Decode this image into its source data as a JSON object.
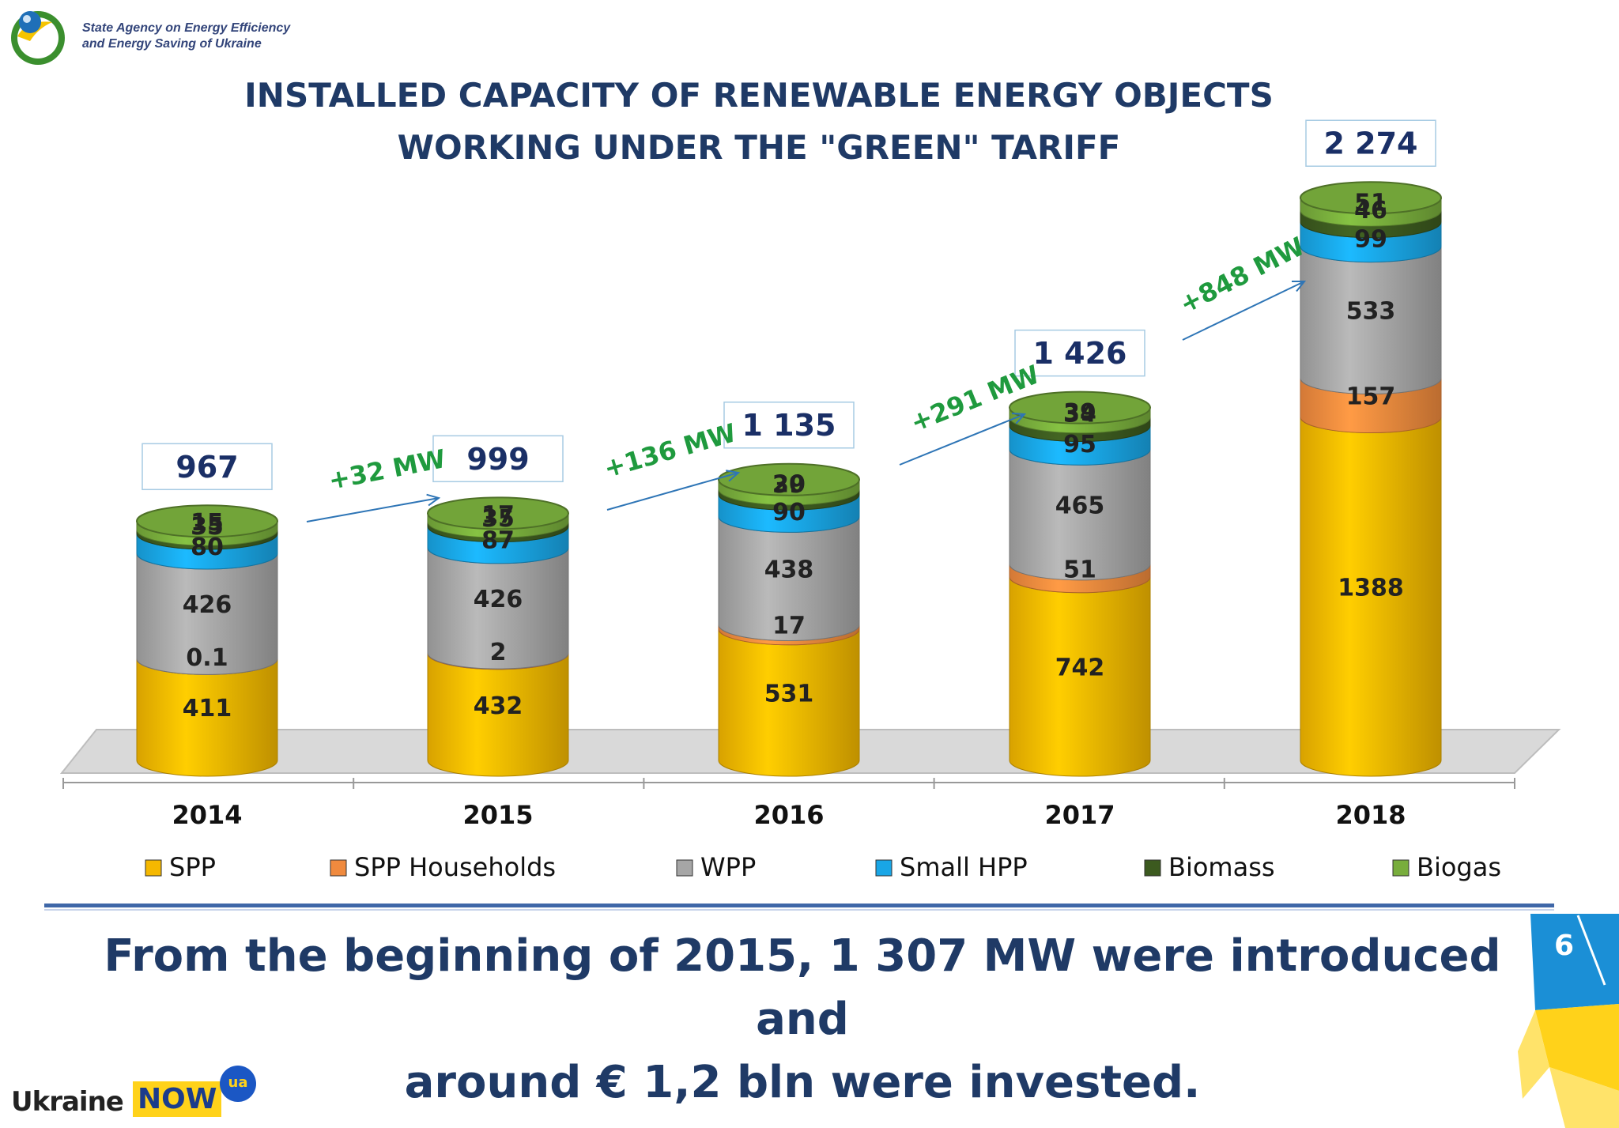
{
  "header": {
    "agency_line1": "State Agency on Energy Efficiency",
    "agency_line2": "and Energy Saving of Ukraine",
    "title_line1": "INSTALLED CAPACITY OF RENEWABLE ENERGY OBJECTS",
    "title_line2": "WORKING UNDER THE \"GREEN\" TARIFF"
  },
  "chart_data": {
    "type": "bar",
    "stacked": true,
    "title": "INSTALLED CAPACITY OF RENEWABLE ENERGY OBJECTS WORKING UNDER THE \"GREEN\" TARIFF",
    "categories": [
      "2014",
      "2015",
      "2016",
      "2017",
      "2018"
    ],
    "series": [
      {
        "name": "SPP",
        "color": "#f5b800",
        "values": [
          411,
          432,
          531,
          742,
          1388
        ],
        "labels": [
          "411",
          "432",
          "531",
          "742",
          "1388"
        ]
      },
      {
        "name": "SPP Households",
        "color": "#f08a3e",
        "values": [
          0.1,
          2,
          17,
          51,
          157
        ],
        "labels": [
          "0.1",
          "2",
          "17",
          "51",
          "157"
        ]
      },
      {
        "name": "WPP",
        "color": "#a6a6a6",
        "values": [
          426,
          426,
          438,
          465,
          533
        ],
        "labels": [
          "426",
          "426",
          "438",
          "465",
          "533"
        ]
      },
      {
        "name": "Small HPP",
        "color": "#19a6e6",
        "values": [
          80,
          87,
          90,
          95,
          99
        ],
        "labels": [
          "80",
          "87",
          "90",
          "95",
          "99"
        ]
      },
      {
        "name": "Biomass",
        "color": "#3c5a1f",
        "values": [
          15,
          17,
          20,
          34,
          46
        ],
        "labels": [
          "15",
          "17",
          "20",
          "34",
          "46"
        ]
      },
      {
        "name": "Biogas",
        "color": "#78ad3c",
        "values": [
          35,
          35,
          39,
          39,
          51
        ],
        "labels": [
          "35",
          "35",
          "39",
          "39",
          "51"
        ]
      }
    ],
    "totals": [
      967,
      999,
      1135,
      1426,
      2274
    ],
    "total_labels": [
      "967",
      "999",
      "1 135",
      "1 426",
      "2 274"
    ],
    "increments": [
      "+32 MW",
      "+136 MW",
      "+291 MW",
      "+848 MW"
    ],
    "legend": [
      "SPP",
      "SPP Households",
      "WPP",
      "Small HPP",
      "Biomass",
      "Biogas"
    ],
    "legend_position": "bottom",
    "ylim": [
      0,
      2400
    ],
    "grid": false
  },
  "footer": {
    "line1": "From the beginning of 2015, 1 307 MW were introduced and",
    "line2": "around € 1,2 bln were invested.",
    "page_number": "6",
    "brand_ukraine": "Ukraine",
    "brand_now": "NOW",
    "brand_ua": "ua"
  }
}
